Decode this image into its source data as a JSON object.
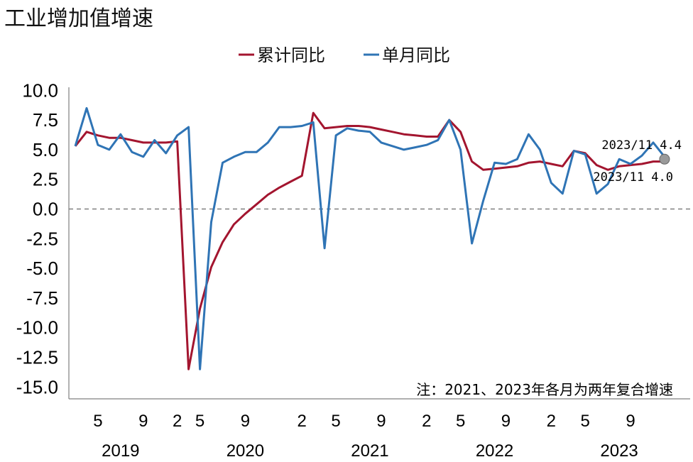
{
  "chart_data": {
    "type": "line",
    "title": "工业增加值增速",
    "note": "注：2021、2023年各月为两年复合增速",
    "ylim": [
      -15,
      10
    ],
    "yticks": [
      "10.0",
      "7.5",
      "5.0",
      "2.5",
      "0.0",
      "-2.5",
      "-5.0",
      "-7.5",
      "-10.0",
      "-12.5",
      "-15.0"
    ],
    "xticks": [
      {
        "label": "5",
        "index": 2
      },
      {
        "label": "9",
        "index": 6
      },
      {
        "label": "2",
        "index": 9
      },
      {
        "label": "5",
        "index": 11
      },
      {
        "label": "9",
        "index": 15
      },
      {
        "label": "2",
        "index": 20
      },
      {
        "label": "5",
        "index": 23
      },
      {
        "label": "9",
        "index": 27
      },
      {
        "label": "2",
        "index": 31
      },
      {
        "label": "5",
        "index": 34
      },
      {
        "label": "9",
        "index": 38
      },
      {
        "label": "2",
        "index": 42
      },
      {
        "label": "5",
        "index": 45
      },
      {
        "label": "9",
        "index": 49
      }
    ],
    "years": [
      {
        "label": "2019",
        "center": 4
      },
      {
        "label": "2020",
        "center": 15
      },
      {
        "label": "2021",
        "center": 26
      },
      {
        "label": "2022",
        "center": 37
      },
      {
        "label": "2023",
        "center": 48
      }
    ],
    "x": [
      "2019-03",
      "2019-04",
      "2019-05",
      "2019-06",
      "2019-07",
      "2019-08",
      "2019-09",
      "2019-10",
      "2019-11",
      "2019-12",
      "2020-02",
      "2020-03",
      "2020-04",
      "2020-05",
      "2020-06",
      "2020-07",
      "2020-08",
      "2020-09",
      "2020-10",
      "2020-11",
      "2020-12",
      "2021-02",
      "2021-03",
      "2021-04",
      "2021-05",
      "2021-06",
      "2021-07",
      "2021-08",
      "2021-09",
      "2021-10",
      "2021-11",
      "2021-12",
      "2022-02",
      "2022-03",
      "2022-04",
      "2022-05",
      "2022-06",
      "2022-07",
      "2022-08",
      "2022-09",
      "2022-10",
      "2022-11",
      "2022-12",
      "2023-02",
      "2023-03",
      "2023-04",
      "2023-05",
      "2023-06",
      "2023-07",
      "2023-08",
      "2023-09",
      "2023-10",
      "2023-11"
    ],
    "series": [
      {
        "name": "累计同比",
        "color": "#a3152f",
        "values": [
          5.3,
          6.5,
          6.2,
          6.0,
          6.0,
          5.8,
          5.6,
          5.6,
          5.6,
          5.7,
          -13.5,
          -8.4,
          -4.9,
          -2.8,
          -1.3,
          -0.4,
          0.4,
          1.2,
          1.8,
          2.3,
          2.8,
          8.1,
          6.8,
          6.9,
          7.0,
          7.0,
          6.9,
          6.7,
          6.5,
          6.3,
          6.2,
          6.1,
          6.1,
          7.5,
          6.5,
          4.0,
          3.3,
          3.4,
          3.5,
          3.6,
          3.9,
          4.0,
          3.8,
          3.6,
          4.9,
          4.7,
          3.7,
          3.3,
          3.6,
          3.7,
          3.8,
          4.0,
          4.0
        ]
      },
      {
        "name": "单月同比",
        "color": "#2f74b5",
        "values": [
          5.3,
          8.5,
          5.4,
          5.0,
          6.3,
          4.8,
          4.4,
          5.8,
          4.7,
          6.2,
          6.9,
          -13.5,
          -1.1,
          3.9,
          4.4,
          4.8,
          4.8,
          5.6,
          6.9,
          6.9,
          7.0,
          7.3,
          -3.3,
          6.2,
          6.8,
          6.6,
          6.5,
          5.6,
          5.3,
          5.0,
          5.2,
          5.4,
          5.8,
          7.5,
          5.0,
          -2.9,
          0.7,
          3.9,
          3.8,
          4.2,
          6.3,
          5.0,
          2.2,
          1.3,
          4.9,
          4.6,
          1.3,
          2.1,
          4.2,
          3.8,
          4.5,
          5.6,
          4.4
        ]
      }
    ],
    "last_labels": [
      {
        "series": "单月同比",
        "text": "2023/11  4.4"
      },
      {
        "series": "累计同比",
        "text": "2023/11  4.0"
      }
    ]
  },
  "colors": {
    "axis": "#7f7f7f",
    "zero": "#808080"
  }
}
